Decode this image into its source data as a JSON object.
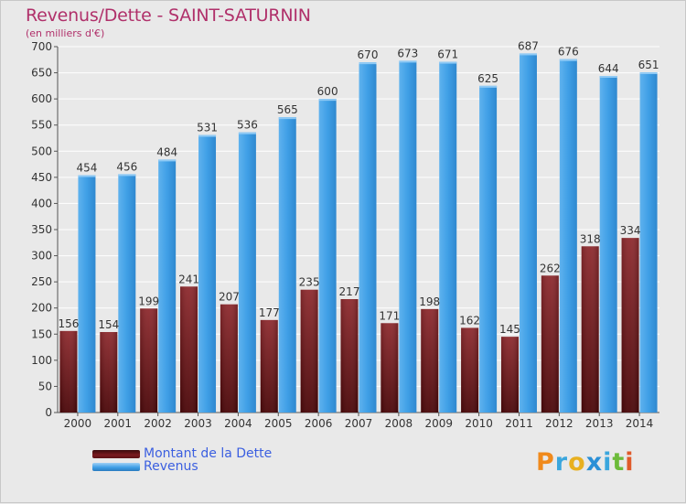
{
  "chart_data": {
    "type": "bar",
    "title": "Revenus/Dette - SAINT-SATURNIN",
    "subtitle": "(en milliers d'€)",
    "xlabel": "",
    "ylabel": "",
    "ylim": [
      0,
      700
    ],
    "yticks": [
      0,
      50,
      100,
      150,
      200,
      250,
      300,
      350,
      400,
      450,
      500,
      550,
      600,
      650,
      700
    ],
    "grid": true,
    "legend_position": "bottom-left",
    "categories": [
      "2000",
      "2001",
      "2002",
      "2003",
      "2004",
      "2005",
      "2006",
      "2007",
      "2008",
      "2009",
      "2010",
      "2011",
      "2012",
      "2013",
      "2014"
    ],
    "series": [
      {
        "name": "Montant de la Dette",
        "color": "#8b1f24",
        "values": [
          156,
          154,
          199,
          241,
          207,
          177,
          235,
          217,
          171,
          198,
          162,
          145,
          262,
          318,
          334
        ]
      },
      {
        "name": "Revenus",
        "color": "#3f9fe6",
        "values": [
          454,
          456,
          484,
          531,
          536,
          565,
          600,
          670,
          673,
          671,
          625,
          687,
          676,
          644,
          651
        ]
      }
    ]
  },
  "logo": {
    "letters": [
      "P",
      "r",
      "o",
      "x",
      "i",
      "t",
      "i"
    ],
    "colors": [
      "#f08a1c",
      "#3aa6dd",
      "#e8b020",
      "#2a8fd6",
      "#3aa6dd",
      "#6dbb3a",
      "#e05a2a"
    ]
  }
}
